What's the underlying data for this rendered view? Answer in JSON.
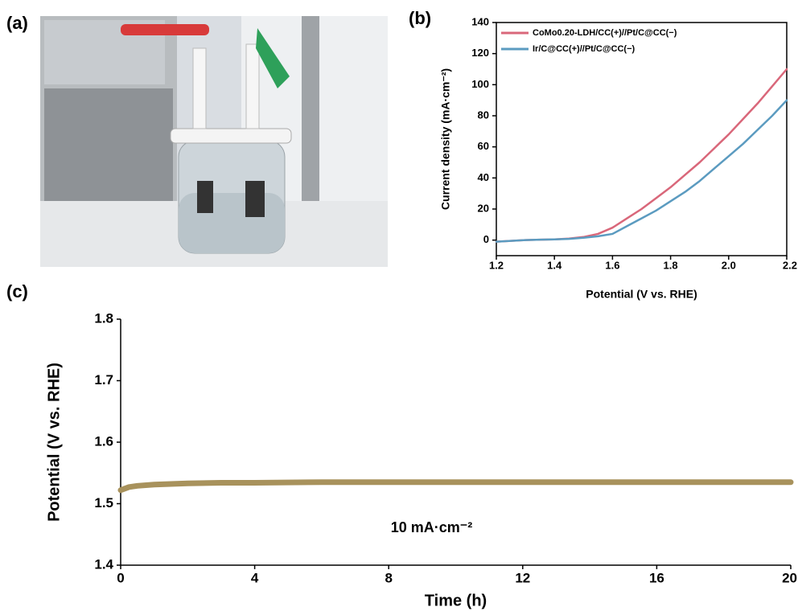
{
  "panel_labels": [
    "(a)",
    "(b)",
    "(c)"
  ],
  "chart_data": [
    {
      "type": "line",
      "xlabel": "Potential (V vs. RHE)",
      "ylabel": "Current density (mA·cm⁻²)",
      "x": [
        1.2,
        1.25,
        1.3,
        1.35,
        1.4,
        1.45,
        1.5,
        1.55,
        1.6,
        1.65,
        1.7,
        1.75,
        1.8,
        1.85,
        1.9,
        1.95,
        2.0,
        2.05,
        2.1,
        2.15,
        2.2
      ],
      "series": [
        {
          "name": "CoMo0.20-LDH/CC(+)//Pt/C@CC(−)",
          "color": "#d9677a",
          "values": [
            -1,
            -0.5,
            0,
            0.3,
            0.5,
            1,
            2,
            4,
            8,
            14,
            20,
            27,
            34,
            42,
            50,
            59,
            68,
            78,
            88,
            99,
            110
          ]
        },
        {
          "name": "Ir/C@CC(+)//Pt/C@CC(−)",
          "color": "#5b9bc0",
          "values": [
            -1,
            -0.5,
            0,
            0.3,
            0.5,
            0.8,
            1.5,
            2.5,
            4,
            9,
            14,
            19,
            25,
            31,
            38,
            46,
            54,
            62,
            71,
            80,
            90
          ]
        }
      ],
      "xlim": [
        1.2,
        2.2
      ],
      "xticks": [
        1.2,
        1.4,
        1.6,
        1.8,
        {
          "value": 2,
          "label": "2.0"
        },
        2.2
      ],
      "ylim": [
        -10,
        140
      ],
      "yticks": [
        0,
        20,
        40,
        60,
        80,
        100,
        120,
        140
      ],
      "legend": "upper left"
    },
    {
      "type": "line",
      "xlabel": "Time (h)",
      "ylabel": "Potential (V vs. RHE)",
      "annotation": "10 mA·cm⁻²",
      "x": [
        0,
        0.25,
        0.5,
        1,
        2,
        3,
        4,
        6,
        8,
        10,
        12,
        14,
        16,
        18,
        20
      ],
      "series": [
        {
          "color": "#a8925c",
          "values": [
            1.522,
            1.527,
            1.529,
            1.531,
            1.533,
            1.534,
            1.534,
            1.535,
            1.535,
            1.535,
            1.535,
            1.535,
            1.535,
            1.535,
            1.535
          ]
        }
      ],
      "xlim": [
        0,
        20
      ],
      "xticks": [
        0,
        4,
        8,
        12,
        16,
        20
      ],
      "ylim": [
        1.4,
        1.8
      ],
      "yticks": [
        1.4,
        1.5,
        1.6,
        1.7,
        1.8
      ]
    }
  ]
}
